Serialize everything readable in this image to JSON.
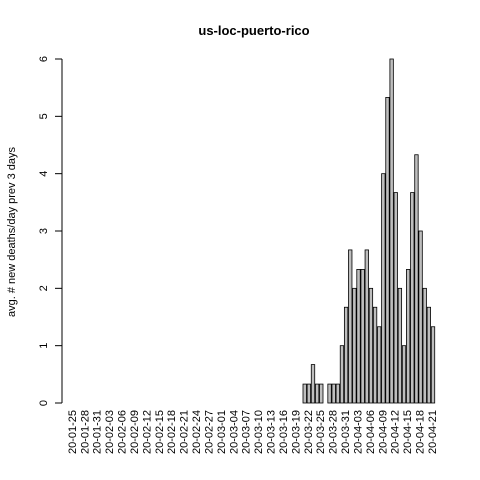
{
  "chart_data": {
    "type": "bar",
    "title": "us-loc-puerto-rico",
    "y_label": "avg. # new deaths/day prev  3  days",
    "categories": [
      "20-01-25",
      null,
      null,
      "20-01-28",
      null,
      null,
      "20-01-31",
      null,
      null,
      "20-02-03",
      null,
      null,
      "20-02-06",
      null,
      null,
      "20-02-09",
      null,
      null,
      "20-02-12",
      null,
      null,
      "20-02-15",
      null,
      null,
      "20-02-18",
      null,
      null,
      "20-02-21",
      null,
      null,
      "20-02-24",
      null,
      null,
      "20-02-27",
      null,
      null,
      "20-03-01",
      null,
      null,
      "20-03-04",
      null,
      null,
      "20-03-07",
      null,
      null,
      "20-03-10",
      null,
      null,
      "20-03-13",
      null,
      null,
      "20-03-16",
      null,
      null,
      "20-03-19",
      null,
      null,
      "20-03-22",
      null,
      null,
      "20-03-25",
      null,
      null,
      "20-03-28",
      null,
      null,
      "20-03-31",
      null,
      null,
      "20-04-03",
      null,
      null,
      "20-04-06",
      null,
      null,
      "20-04-09",
      null,
      null,
      "20-04-12",
      null,
      null,
      "20-04-15",
      null,
      null,
      "20-04-18",
      null,
      null,
      "20-04-21"
    ],
    "values": [
      0,
      0,
      0,
      0,
      0,
      0,
      0,
      0,
      0,
      0,
      0,
      0,
      0,
      0,
      0,
      0,
      0,
      0,
      0,
      0,
      0,
      0,
      0,
      0,
      0,
      0,
      0,
      0,
      0,
      0,
      0,
      0,
      0,
      0,
      0,
      0,
      0,
      0,
      0,
      0,
      0,
      0,
      0,
      0,
      0,
      0,
      0,
      0,
      0,
      0,
      0,
      0,
      0,
      0,
      0,
      0,
      0.33,
      0.33,
      0.67,
      0.33,
      0.33,
      0,
      0.33,
      0.33,
      0.33,
      1,
      1.67,
      2.67,
      2,
      2.33,
      2.33,
      2.67,
      2,
      1.67,
      1.33,
      4,
      5.33,
      6,
      3.67,
      2,
      1,
      2.33,
      3.67,
      4.33,
      3,
      2,
      1.67,
      1.33
    ],
    "color": "#bebebe",
    "ylim": [
      0,
      6
    ],
    "yticks": [
      0,
      1,
      2,
      3,
      4,
      5,
      6
    ]
  }
}
